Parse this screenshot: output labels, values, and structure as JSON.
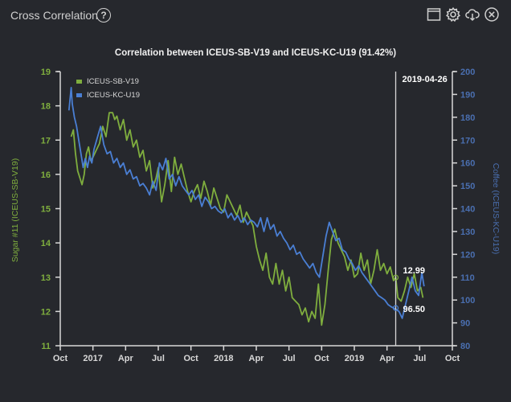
{
  "header": {
    "title": "Cross Correlation",
    "help_icon": "question-circle-icon",
    "tools": [
      {
        "name": "window-icon",
        "label": "Maximize"
      },
      {
        "name": "gear-icon",
        "label": "Settings"
      },
      {
        "name": "cloud-download-icon",
        "label": "Download"
      },
      {
        "name": "close-circle-icon",
        "label": "Close"
      }
    ]
  },
  "colors": {
    "background": "#26282d",
    "sugar": "#7fae3e",
    "coffee": "#4a7fd4",
    "axis": "#d8d8d8",
    "left_axis_text": "#7fae3e",
    "right_axis_text": "#4a6fb0"
  },
  "chart_data": {
    "type": "line",
    "title": "Correlation between ICEUS-SB-V19 and ICEUS-KC-U19 (91.42%)",
    "xlabel": "",
    "ylabel_left": "Sugar #11 (ICEUS-SB-V19)",
    "ylabel_right": "Coffee (ICEUS-KC-U19)",
    "ylim_left": [
      11,
      19
    ],
    "ylim_right": [
      80,
      200
    ],
    "yticks_left": [
      "11",
      "12",
      "13",
      "14",
      "15",
      "16",
      "17",
      "18",
      "19"
    ],
    "yticks_right": [
      "80",
      "90",
      "100",
      "110",
      "120",
      "130",
      "140",
      "150",
      "160",
      "170",
      "180",
      "190",
      "200"
    ],
    "x_range_months": [
      0,
      36
    ],
    "x_start": "2016-10",
    "xticks": [
      {
        "label": "Oct",
        "m": 0
      },
      {
        "label": "2017",
        "m": 3
      },
      {
        "label": "Apr",
        "m": 6
      },
      {
        "label": "Jul",
        "m": 9
      },
      {
        "label": "Oct",
        "m": 12
      },
      {
        "label": "2018",
        "m": 15
      },
      {
        "label": "Apr",
        "m": 18
      },
      {
        "label": "Jul",
        "m": 21
      },
      {
        "label": "Oct",
        "m": 24
      },
      {
        "label": "2019",
        "m": 27
      },
      {
        "label": "Apr",
        "m": 30
      },
      {
        "label": "Jul",
        "m": 33
      },
      {
        "label": "Oct",
        "m": 36
      }
    ],
    "legend": {
      "placement": "top-left",
      "entries": [
        "ICEUS-SB-V19",
        "ICEUS-KC-U19"
      ]
    },
    "cursor": {
      "date": "2019-04-26",
      "m": 30.8,
      "sugar_label": "12.99",
      "coffee_label": "96.50"
    },
    "series": [
      {
        "name": "ICEUS-SB-V19",
        "axis": "left",
        "m": [
          1.0,
          1.2,
          1.4,
          1.6,
          1.8,
          2.0,
          2.2,
          2.4,
          2.6,
          2.8,
          3.0,
          3.3,
          3.6,
          3.9,
          4.2,
          4.5,
          4.8,
          5.0,
          5.2,
          5.5,
          5.8,
          6.1,
          6.4,
          6.7,
          7.0,
          7.3,
          7.6,
          7.9,
          8.2,
          8.5,
          8.8,
          9.0,
          9.3,
          9.6,
          9.9,
          10.2,
          10.5,
          10.8,
          11.1,
          11.4,
          11.7,
          12.0,
          12.3,
          12.6,
          12.9,
          13.2,
          13.5,
          13.8,
          14.1,
          14.4,
          14.7,
          15.0,
          15.3,
          15.6,
          15.9,
          16.2,
          16.5,
          16.8,
          17.1,
          17.4,
          17.7,
          18.0,
          18.3,
          18.6,
          18.9,
          19.2,
          19.5,
          19.8,
          20.1,
          20.4,
          20.7,
          21.0,
          21.3,
          21.6,
          21.9,
          22.2,
          22.5,
          22.8,
          23.1,
          23.4,
          23.7,
          24.0,
          24.3,
          24.6,
          24.9,
          25.2,
          25.5,
          25.8,
          26.1,
          26.4,
          26.7,
          27.0,
          27.3,
          27.6,
          27.9,
          28.2,
          28.5,
          28.8,
          29.1,
          29.4,
          29.7,
          30.0,
          30.3,
          30.6,
          30.8,
          31.0,
          31.3,
          31.6,
          31.9,
          32.2,
          32.5,
          32.8,
          33.1,
          33.3
        ],
        "values": [
          17.1,
          17.3,
          16.6,
          16.1,
          15.9,
          15.7,
          16.0,
          16.6,
          16.8,
          16.4,
          16.5,
          16.7,
          16.9,
          17.4,
          17.1,
          17.8,
          17.8,
          17.6,
          17.7,
          17.3,
          17.6,
          17.0,
          17.3,
          16.8,
          17.0,
          16.5,
          16.7,
          16.1,
          16.4,
          15.6,
          15.9,
          16.2,
          15.2,
          15.7,
          16.4,
          15.5,
          16.5,
          16.0,
          16.3,
          15.9,
          15.5,
          15.2,
          15.5,
          15.7,
          15.3,
          15.8,
          15.5,
          15.1,
          15.6,
          15.3,
          15.0,
          14.9,
          15.4,
          15.2,
          15.0,
          14.8,
          15.1,
          14.6,
          14.9,
          14.7,
          14.5,
          13.9,
          13.5,
          13.2,
          13.7,
          13.0,
          12.8,
          13.4,
          12.8,
          13.2,
          12.6,
          13.0,
          12.4,
          12.3,
          12.2,
          11.9,
          12.1,
          11.7,
          12.0,
          11.8,
          12.8,
          11.6,
          12.2,
          13.2,
          14.1,
          14.4,
          14.0,
          13.8,
          13.6,
          13.2,
          13.5,
          13.0,
          13.1,
          13.7,
          13.2,
          13.5,
          12.8,
          13.2,
          13.8,
          13.2,
          13.4,
          13.1,
          13.3,
          12.9,
          13.0,
          12.4,
          12.3,
          12.6,
          13.0,
          12.7,
          13.1,
          12.6,
          12.7,
          12.4
        ]
      },
      {
        "name": "ICEUS-KC-U19",
        "axis": "right",
        "m": [
          0.8,
          1.0,
          1.1,
          1.3,
          1.5,
          1.7,
          1.9,
          2.1,
          2.3,
          2.5,
          2.7,
          2.9,
          3.1,
          3.4,
          3.7,
          4.0,
          4.3,
          4.6,
          4.9,
          5.2,
          5.5,
          5.8,
          6.1,
          6.4,
          6.7,
          7.0,
          7.3,
          7.6,
          7.9,
          8.2,
          8.5,
          8.8,
          9.1,
          9.4,
          9.7,
          10.0,
          10.3,
          10.6,
          10.9,
          11.2,
          11.5,
          11.8,
          12.1,
          12.4,
          12.7,
          13.0,
          13.3,
          13.6,
          13.9,
          14.2,
          14.5,
          14.8,
          15.1,
          15.4,
          15.7,
          16.0,
          16.3,
          16.6,
          16.9,
          17.2,
          17.5,
          17.8,
          18.1,
          18.4,
          18.7,
          19.0,
          19.3,
          19.6,
          19.9,
          20.2,
          20.5,
          20.8,
          21.1,
          21.4,
          21.7,
          22.0,
          22.3,
          22.6,
          22.9,
          23.2,
          23.5,
          23.8,
          24.1,
          24.4,
          24.7,
          25.0,
          25.3,
          25.6,
          25.9,
          26.2,
          26.5,
          26.8,
          27.1,
          27.4,
          27.7,
          28.0,
          28.3,
          28.6,
          28.9,
          29.2,
          29.5,
          29.8,
          30.1,
          30.4,
          30.8,
          31.1,
          31.4,
          31.7,
          32.0,
          32.3,
          32.6,
          32.9,
          33.2,
          33.4
        ],
        "values": [
          183,
          193,
          186,
          180,
          176,
          170,
          164,
          158,
          162,
          158,
          163,
          160,
          166,
          171,
          176,
          168,
          164,
          165,
          160,
          162,
          158,
          160,
          155,
          157,
          153,
          154,
          150,
          151,
          149,
          146,
          152,
          148,
          160,
          157,
          162,
          153,
          155,
          150,
          154,
          150,
          148,
          146,
          148,
          144,
          146,
          141,
          145,
          143,
          140,
          141,
          139,
          138,
          140,
          136,
          138,
          135,
          137,
          134,
          136,
          133,
          135,
          134,
          132,
          136,
          130,
          136,
          131,
          133,
          128,
          130,
          127,
          125,
          122,
          124,
          120,
          121,
          118,
          116,
          114,
          116,
          112,
          110,
          119,
          128,
          134,
          130,
          126,
          127,
          122,
          121,
          118,
          116,
          113,
          115,
          112,
          110,
          108,
          106,
          104,
          102,
          101,
          100,
          98,
          97,
          96,
          95,
          92,
          98,
          104,
          110,
          104,
          102,
          112,
          106
        ]
      }
    ]
  }
}
